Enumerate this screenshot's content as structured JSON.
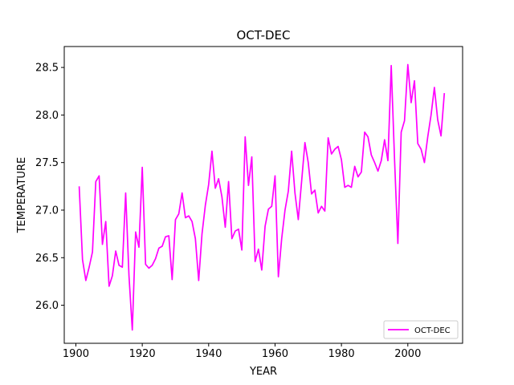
{
  "chart_data": {
    "type": "line",
    "title": "OCT-DEC",
    "xlabel": "YEAR",
    "ylabel": "TEMPERATURE",
    "xlim": [
      1896.5,
      2016.5
    ],
    "ylim": [
      25.6,
      28.72
    ],
    "xticks": [
      1900,
      1920,
      1940,
      1960,
      1980,
      2000
    ],
    "yticks": [
      26.0,
      26.5,
      27.0,
      27.5,
      28.0,
      28.5
    ],
    "legend_position": "lower-right",
    "grid": false,
    "series": [
      {
        "name": "OCT-DEC",
        "color": "#ff00ff",
        "x": [
          1901,
          1902,
          1903,
          1904,
          1905,
          1906,
          1907,
          1908,
          1909,
          1910,
          1911,
          1912,
          1913,
          1914,
          1915,
          1916,
          1917,
          1918,
          1919,
          1920,
          1921,
          1922,
          1923,
          1924,
          1925,
          1926,
          1927,
          1928,
          1929,
          1930,
          1931,
          1932,
          1933,
          1934,
          1935,
          1936,
          1937,
          1938,
          1939,
          1940,
          1941,
          1942,
          1943,
          1944,
          1945,
          1946,
          1947,
          1948,
          1949,
          1950,
          1951,
          1952,
          1953,
          1954,
          1955,
          1956,
          1957,
          1958,
          1959,
          1960,
          1961,
          1962,
          1963,
          1964,
          1965,
          1966,
          1967,
          1968,
          1969,
          1970,
          1971,
          1972,
          1973,
          1974,
          1975,
          1976,
          1977,
          1978,
          1979,
          1980,
          1981,
          1982,
          1983,
          1984,
          1985,
          1986,
          1987,
          1988,
          1989,
          1990,
          1991,
          1992,
          1993,
          1994,
          1995,
          1996,
          1997,
          1998,
          1999,
          2000,
          2001,
          2002,
          2003,
          2004,
          2005,
          2006,
          2007,
          2008,
          2009,
          2010,
          2011
        ],
        "y": [
          27.25,
          26.48,
          26.26,
          26.4,
          26.56,
          27.3,
          27.36,
          26.64,
          26.88,
          26.2,
          26.31,
          26.57,
          26.42,
          26.4,
          27.18,
          26.31,
          25.74,
          26.77,
          26.61,
          27.45,
          26.43,
          26.39,
          26.42,
          26.49,
          26.6,
          26.62,
          26.72,
          26.73,
          26.27,
          26.9,
          26.96,
          27.18,
          26.92,
          26.94,
          26.88,
          26.7,
          26.26,
          26.75,
          27.05,
          27.27,
          27.62,
          27.23,
          27.33,
          27.14,
          26.82,
          27.3,
          26.7,
          26.78,
          26.8,
          26.58,
          27.77,
          27.26,
          27.56,
          26.46,
          26.59,
          26.37,
          26.83,
          27.01,
          27.04,
          27.36,
          26.3,
          26.7,
          27.0,
          27.2,
          27.62,
          27.18,
          26.9,
          27.3,
          27.71,
          27.5,
          27.17,
          27.21,
          26.97,
          27.04,
          26.99,
          27.76,
          27.59,
          27.64,
          27.67,
          27.53,
          27.24,
          27.26,
          27.24,
          27.46,
          27.35,
          27.4,
          27.82,
          27.77,
          27.58,
          27.5,
          27.41,
          27.52,
          27.74,
          27.52,
          28.52,
          27.53,
          26.65,
          27.82,
          27.94,
          28.53,
          28.13,
          28.36,
          27.7,
          27.64,
          27.5,
          27.77,
          28.0,
          28.29,
          27.95,
          27.78,
          28.23
        ]
      }
    ]
  }
}
